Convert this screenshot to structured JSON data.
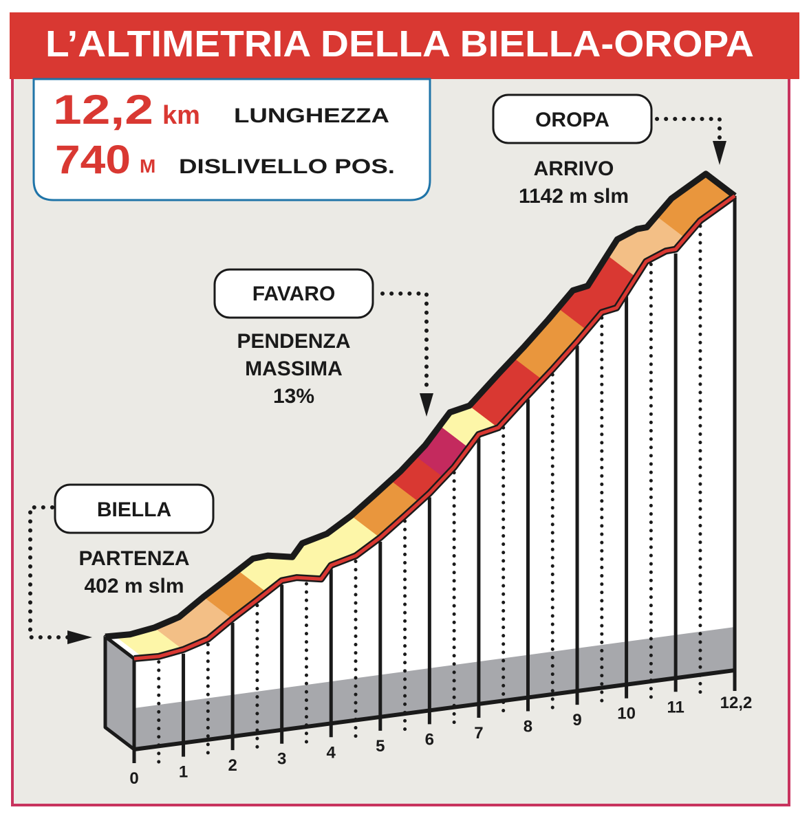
{
  "title": "L’ALTIMETRIA DELLA BIELLA-OROPA",
  "summary": {
    "length_value": "12,2",
    "length_unit": "km",
    "length_label": "LUNGHEZZA",
    "climb_value": "740",
    "climb_unit": "M",
    "climb_label": "DISLIVELLO POS."
  },
  "callouts": {
    "start": {
      "name": "BIELLA",
      "line1": "PARTENZA",
      "line2": "402 m slm"
    },
    "mid": {
      "name": "FAVARO",
      "line1": "PENDENZA",
      "line2": "MASSIMA",
      "line3": "13%"
    },
    "end": {
      "name": "OROPA",
      "line1": "ARRIVO",
      "line2": "1142 m slm"
    }
  },
  "colors": {
    "title_bar": "#d93832",
    "frame": "#c8335e",
    "background": "#ebeae5",
    "summary_border": "#1f74a8",
    "accent_text": "#d93832",
    "base_band": "#a7a8ac"
  },
  "chart_data": {
    "type": "area",
    "xlabel": "",
    "ylabel": "",
    "xlim": [
      0,
      12.2
    ],
    "x_tick_labels": [
      "0",
      "1",
      "2",
      "3",
      "4",
      "5",
      "6",
      "7",
      "8",
      "9",
      "10",
      "11",
      "12,2"
    ],
    "x_ticks": [
      0,
      1,
      2,
      3,
      4,
      5,
      6,
      7,
      8,
      9,
      10,
      11,
      12.2
    ],
    "profile": {
      "km": [
        0,
        0.5,
        1,
        1.5,
        2,
        2.5,
        3,
        3.3,
        3.8,
        4,
        4.5,
        5,
        5.5,
        6,
        6.5,
        7,
        7.4,
        8,
        8.5,
        9,
        9.5,
        9.8,
        10.4,
        10.8,
        11,
        11.5,
        12.2
      ],
      "elevation_m": [
        402,
        400,
        407,
        421,
        454,
        484,
        515,
        517,
        508,
        532,
        544,
        573,
        609,
        646,
        690,
        747,
        755,
        810,
        854,
        901,
        951,
        956,
        1038,
        1053,
        1054,
        1103,
        1142
      ]
    },
    "gradient_segments": [
      {
        "from": 0,
        "to": 0.2,
        "color": "#ffffff"
      },
      {
        "from": 0.2,
        "to": 1.0,
        "color": "#fdf6a8"
      },
      {
        "from": 1.0,
        "to": 2.0,
        "color": "#f3bf86"
      },
      {
        "from": 2.0,
        "to": 2.7,
        "color": "#e9963d"
      },
      {
        "from": 2.7,
        "to": 5.0,
        "color": "#fdf6a8"
      },
      {
        "from": 5.0,
        "to": 5.8,
        "color": "#e9963d"
      },
      {
        "from": 5.8,
        "to": 6.3,
        "color": "#d93832"
      },
      {
        "from": 6.3,
        "to": 6.8,
        "color": "#c42a5e"
      },
      {
        "from": 6.8,
        "to": 7.4,
        "color": "#fdf6a8"
      },
      {
        "from": 7.4,
        "to": 8.3,
        "color": "#d93832"
      },
      {
        "from": 8.3,
        "to": 9.2,
        "color": "#e9963d"
      },
      {
        "from": 9.2,
        "to": 10.2,
        "color": "#d93832"
      },
      {
        "from": 10.2,
        "to": 11.2,
        "color": "#f3bf86"
      },
      {
        "from": 11.2,
        "to": 12.2,
        "color": "#e9963d"
      }
    ],
    "start_elevation_m": 402,
    "end_elevation_m": 1142
  }
}
